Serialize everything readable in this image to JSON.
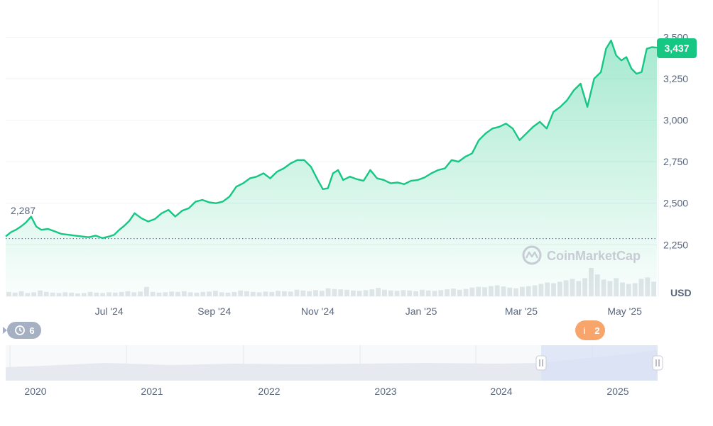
{
  "chart_data": {
    "type": "area",
    "y_axis": {
      "ticks": [
        2250,
        2500,
        2750,
        3000,
        3250,
        3500
      ],
      "tick_labels": [
        "2,250",
        "2,500",
        "2,750",
        "3,000",
        "3,250",
        "3,500"
      ],
      "ylim": [
        2200,
        3600
      ],
      "unit_label": "USD",
      "position": "right"
    },
    "x_axis": {
      "tick_labels": [
        "Jul '24",
        "Sep '24",
        "Nov '24",
        "Jan '25",
        "Mar '25",
        "May '25"
      ]
    },
    "x": [
      "2024-05-01",
      "2024-05-04",
      "2024-05-07",
      "2024-05-10",
      "2024-05-13",
      "2024-05-16",
      "2024-05-19",
      "2024-05-22",
      "2024-05-26",
      "2024-05-30",
      "2024-06-03",
      "2024-06-07",
      "2024-06-11",
      "2024-06-15",
      "2024-06-19",
      "2024-06-23",
      "2024-06-27",
      "2024-07-01",
      "2024-07-04",
      "2024-07-07",
      "2024-07-10",
      "2024-07-13",
      "2024-07-16",
      "2024-07-20",
      "2024-07-24",
      "2024-07-28",
      "2024-08-01",
      "2024-08-05",
      "2024-08-09",
      "2024-08-13",
      "2024-08-17",
      "2024-08-21",
      "2024-08-25",
      "2024-08-29",
      "2024-09-02",
      "2024-09-06",
      "2024-09-10",
      "2024-09-14",
      "2024-09-18",
      "2024-09-22",
      "2024-09-26",
      "2024-09-30",
      "2024-10-04",
      "2024-10-08",
      "2024-10-12",
      "2024-10-16",
      "2024-10-20",
      "2024-10-24",
      "2024-10-28",
      "2024-11-01",
      "2024-11-04",
      "2024-11-07",
      "2024-11-10",
      "2024-11-13",
      "2024-11-16",
      "2024-11-20",
      "2024-11-24",
      "2024-11-28",
      "2024-12-02",
      "2024-12-06",
      "2024-12-10",
      "2024-12-14",
      "2024-12-18",
      "2024-12-22",
      "2024-12-26",
      "2024-12-30",
      "2025-01-03",
      "2025-01-07",
      "2025-01-11",
      "2025-01-15",
      "2025-01-19",
      "2025-01-23",
      "2025-01-27",
      "2025-01-31",
      "2025-02-04",
      "2025-02-08",
      "2025-02-12",
      "2025-02-16",
      "2025-02-20",
      "2025-02-24",
      "2025-02-28",
      "2025-03-04",
      "2025-03-08",
      "2025-03-12",
      "2025-03-16",
      "2025-03-20",
      "2025-03-24",
      "2025-03-28",
      "2025-04-01",
      "2025-04-05",
      "2025-04-09",
      "2025-04-13",
      "2025-04-17",
      "2025-04-20",
      "2025-04-23",
      "2025-04-26",
      "2025-04-29",
      "2025-05-02",
      "2025-05-05",
      "2025-05-08",
      "2025-05-11",
      "2025-05-14",
      "2025-05-17",
      "2025-05-20"
    ],
    "series": [
      {
        "values": [
          2300,
          2325,
          2340,
          2360,
          2385,
          2420,
          2360,
          2340,
          2345,
          2330,
          2315,
          2310,
          2305,
          2300,
          2295,
          2305,
          2290,
          2300,
          2310,
          2340,
          2365,
          2395,
          2440,
          2410,
          2390,
          2405,
          2440,
          2460,
          2420,
          2455,
          2470,
          2510,
          2520,
          2505,
          2500,
          2510,
          2540,
          2600,
          2620,
          2650,
          2660,
          2680,
          2650,
          2690,
          2710,
          2740,
          2760,
          2760,
          2720,
          2640,
          2585,
          2590,
          2680,
          2700,
          2640,
          2660,
          2645,
          2635,
          2700,
          2650,
          2640,
          2620,
          2625,
          2615,
          2635,
          2640,
          2655,
          2680,
          2700,
          2710,
          2760,
          2750,
          2780,
          2800,
          2880,
          2920,
          2950,
          2960,
          2980,
          2950,
          2880,
          2920,
          2960,
          2990,
          2950,
          3050,
          3080,
          3120,
          3180,
          3220,
          3080,
          3250,
          3290,
          3430,
          3480,
          3390,
          3360,
          3380,
          3310,
          3280,
          3290,
          3430,
          3440,
          3437
        ],
        "color": "#16c784"
      }
    ],
    "volume": [
      12,
      10,
      14,
      9,
      11,
      16,
      12,
      10,
      9,
      11,
      10,
      8,
      9,
      12,
      10,
      9,
      11,
      10,
      12,
      14,
      11,
      13,
      26,
      12,
      10,
      11,
      13,
      12,
      14,
      11,
      10,
      12,
      13,
      15,
      11,
      10,
      12,
      16,
      14,
      12,
      11,
      13,
      12,
      15,
      14,
      13,
      18,
      16,
      14,
      17,
      15,
      22,
      20,
      19,
      18,
      16,
      15,
      17,
      19,
      23,
      18,
      16,
      15,
      17,
      16,
      14,
      18,
      16,
      15,
      17,
      19,
      21,
      18,
      20,
      24,
      26,
      25,
      28,
      30,
      27,
      24,
      22,
      26,
      28,
      30,
      34,
      38,
      36,
      40,
      44,
      48,
      42,
      50,
      78,
      60,
      46,
      42,
      50,
      38,
      34,
      36,
      48,
      52,
      40
    ],
    "current_price_label": "3,437",
    "reference_price_label": "2,287",
    "reference_price": 2287,
    "watermark": "CoinMarketCap",
    "event_badges": [
      {
        "icon": "history-icon",
        "label": "6",
        "date": "2024-05-01"
      },
      {
        "icon": "info-icon",
        "label": "i",
        "count": "2",
        "date": "2025-04-01"
      }
    ],
    "navigator": {
      "year_labels": [
        "2020",
        "2021",
        "2022",
        "2023",
        "2024",
        "2025"
      ],
      "selection": [
        "2024-05-01",
        "2025-05-20"
      ]
    }
  },
  "colors": {
    "line": "#16c784",
    "area_top": "#16c784",
    "grid": "#eff2f5",
    "axis_text": "#58667e",
    "navigator_fill": "#e6e9ef",
    "navigator_selection": "#dde4f6",
    "badge_gray": "#a6b0c3",
    "badge_orange": "#f7a56b",
    "watermark": "#c6cbd4"
  }
}
